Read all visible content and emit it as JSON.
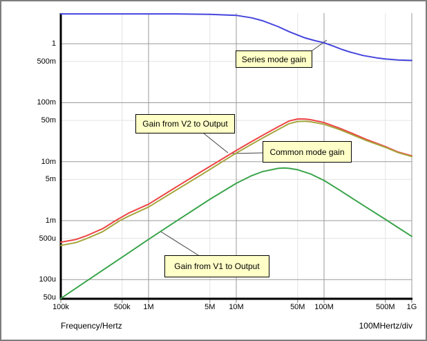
{
  "window": {
    "background": "#ffffff",
    "border_color": "#7d7d7d"
  },
  "chart_data": {
    "type": "line",
    "x_axis": {
      "label": "Frequency/Hertz",
      "div_note": "100MHertz/div",
      "scale": "log",
      "min": 100000.0,
      "max": 1000000000.0,
      "ticks": [
        {
          "value": 100000.0,
          "label": "100k",
          "major": true
        },
        {
          "value": 500000.0,
          "label": "500k",
          "major": false
        },
        {
          "value": 1000000.0,
          "label": "1M",
          "major": true
        },
        {
          "value": 5000000.0,
          "label": "5M",
          "major": false
        },
        {
          "value": 10000000.0,
          "label": "10M",
          "major": true
        },
        {
          "value": 50000000.0,
          "label": "50M",
          "major": false
        },
        {
          "value": 100000000.0,
          "label": "100M",
          "major": true
        },
        {
          "value": 500000000.0,
          "label": "500M",
          "major": false
        },
        {
          "value": 1000000000.0,
          "label": "1G",
          "major": true
        }
      ]
    },
    "y_axis": {
      "label": "",
      "scale": "log",
      "min": 4.72e-05,
      "max": 3.3,
      "ticks": [
        {
          "value": 1,
          "label": "1",
          "major": true
        },
        {
          "value": 0.5,
          "label": "500m",
          "major": false
        },
        {
          "value": 0.1,
          "label": "100m",
          "major": true
        },
        {
          "value": 0.05,
          "label": "50m",
          "major": false
        },
        {
          "value": 0.01,
          "label": "10m",
          "major": true
        },
        {
          "value": 0.005,
          "label": "5m",
          "major": false
        },
        {
          "value": 0.001,
          "label": "1m",
          "major": true
        },
        {
          "value": 0.0005,
          "label": "500u",
          "major": false
        },
        {
          "value": 0.0001,
          "label": "100u",
          "major": true
        },
        {
          "value": 5e-05,
          "label": "50u",
          "major": false
        }
      ]
    },
    "grid": {
      "major_color": "#9a9a9a",
      "minor_color": "#e3e3e3",
      "axis_color": "#000000"
    },
    "series": [
      {
        "name": "Series mode gain",
        "color": "#4444dd",
        "points": [
          [
            100000.0,
            3.2
          ],
          [
            1000000.0,
            3.2
          ],
          [
            2000000.0,
            3.2
          ],
          [
            5000000.0,
            3.15
          ],
          [
            10000000.0,
            3.03
          ],
          [
            15000000.0,
            2.75
          ],
          [
            20000000.0,
            2.45
          ],
          [
            30000000.0,
            1.95
          ],
          [
            40000000.0,
            1.6
          ],
          [
            50000000.0,
            1.4
          ],
          [
            60000000.0,
            1.26
          ],
          [
            80000000.0,
            1.12
          ],
          [
            100000000.0,
            1.04
          ],
          [
            130000000.0,
            0.9
          ],
          [
            160000000.0,
            0.8
          ],
          [
            200000000.0,
            0.72
          ],
          [
            280000000.0,
            0.63
          ],
          [
            400000000.0,
            0.575
          ],
          [
            500000000.0,
            0.55
          ],
          [
            700000000.0,
            0.53
          ],
          [
            1000000000.0,
            0.52
          ]
        ]
      },
      {
        "name": "Gain from V2 to Output",
        "color": "#ee4343",
        "points": [
          [
            100000.0,
            0.00043
          ],
          [
            150000.0,
            0.00048
          ],
          [
            200000.0,
            0.00056
          ],
          [
            300000.0,
            0.00073
          ],
          [
            420000.0,
            0.001
          ],
          [
            600000.0,
            0.00135
          ],
          [
            1000000.0,
            0.0019
          ],
          [
            2000000.0,
            0.0036
          ],
          [
            4000000.0,
            0.0068
          ],
          [
            6500000.0,
            0.0105
          ],
          [
            10000000.0,
            0.0155
          ],
          [
            15000000.0,
            0.022
          ],
          [
            20000000.0,
            0.028
          ],
          [
            30000000.0,
            0.039
          ],
          [
            40000000.0,
            0.049
          ],
          [
            50000000.0,
            0.053
          ],
          [
            60000000.0,
            0.053
          ],
          [
            70000000.0,
            0.0515
          ],
          [
            100000000.0,
            0.046
          ],
          [
            150000000.0,
            0.037
          ],
          [
            200000000.0,
            0.031
          ],
          [
            300000000.0,
            0.024
          ],
          [
            500000000.0,
            0.018
          ],
          [
            700000000.0,
            0.0145
          ],
          [
            1000000000.0,
            0.0125
          ]
        ]
      },
      {
        "name": "Common mode gain",
        "color": "#a6a63e",
        "points": [
          [
            100000.0,
            0.00038
          ],
          [
            150000.0,
            0.000425
          ],
          [
            200000.0,
            0.0005
          ],
          [
            300000.0,
            0.00065
          ],
          [
            470000.0,
            0.001
          ],
          [
            600000.0,
            0.0012
          ],
          [
            1000000.0,
            0.0017
          ],
          [
            2000000.0,
            0.0032
          ],
          [
            4000000.0,
            0.006
          ],
          [
            6500000.0,
            0.0094
          ],
          [
            10000000.0,
            0.014
          ],
          [
            15000000.0,
            0.0198
          ],
          [
            20000000.0,
            0.0252
          ],
          [
            30000000.0,
            0.035
          ],
          [
            40000000.0,
            0.044
          ],
          [
            50000000.0,
            0.048
          ],
          [
            60000000.0,
            0.0485
          ],
          [
            70000000.0,
            0.0475
          ],
          [
            100000000.0,
            0.043
          ],
          [
            150000000.0,
            0.035
          ],
          [
            200000000.0,
            0.0295
          ],
          [
            300000000.0,
            0.023
          ],
          [
            500000000.0,
            0.0175
          ],
          [
            700000000.0,
            0.0142
          ],
          [
            1000000000.0,
            0.0122
          ]
        ]
      },
      {
        "name": "Gain from V1 to Output",
        "color": "#3aa44a",
        "points": [
          [
            100000.0,
            4.8e-05
          ],
          [
            200000.0,
            9.6e-05
          ],
          [
            500000.0,
            0.00024
          ],
          [
            1000000.0,
            0.00048
          ],
          [
            2000000.0,
            0.00095
          ],
          [
            5000000.0,
            0.0023
          ],
          [
            10000000.0,
            0.0043
          ],
          [
            15000000.0,
            0.0058
          ],
          [
            20000000.0,
            0.0068
          ],
          [
            30000000.0,
            0.0077
          ],
          [
            35000000.0,
            0.0078
          ],
          [
            40000000.0,
            0.0077
          ],
          [
            50000000.0,
            0.0073
          ],
          [
            70000000.0,
            0.0062
          ],
          [
            100000000.0,
            0.0048
          ],
          [
            150000000.0,
            0.0033
          ],
          [
            200000000.0,
            0.0025
          ],
          [
            300000000.0,
            0.0017
          ],
          [
            500000000.0,
            0.00105
          ],
          [
            700000000.0,
            0.00076
          ],
          [
            1000000000.0,
            0.00054
          ]
        ]
      }
    ],
    "legend_position": "none",
    "grid_on": true
  },
  "callouts": [
    {
      "id": "series",
      "text": "Series mode gain"
    },
    {
      "id": "v2",
      "text": "Gain from V2 to Output"
    },
    {
      "id": "common",
      "text": "Common mode gain"
    },
    {
      "id": "v1",
      "text": "Gain from V1 to Output"
    }
  ],
  "callout_style": {
    "fill": "#ffffc8",
    "border": "#000000",
    "leader_color": "#404040"
  }
}
